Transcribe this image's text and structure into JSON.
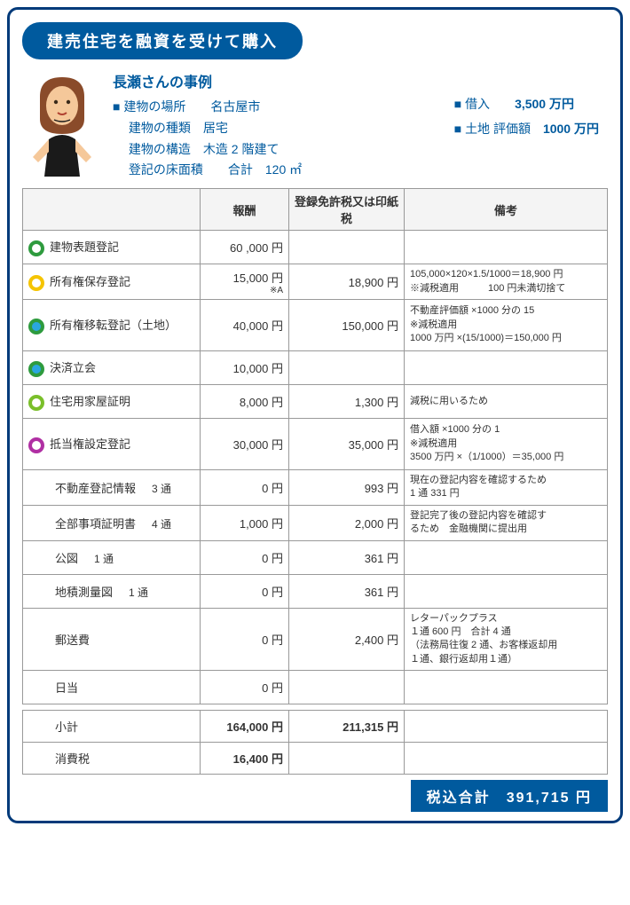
{
  "title": "建売住宅を融資を受けて購入",
  "case_name": "長瀬さんの事例",
  "details": {
    "location_label": "建物の場所",
    "location": "名古屋市",
    "type_label": "建物の種類",
    "type": "居宅",
    "structure_label": "建物の構造",
    "structure": "木造 2 階建て",
    "area_label": "登記の床面積",
    "area": "合計　120 ㎡"
  },
  "right": {
    "loan_label": "借入",
    "loan": "3,500 万円",
    "land_label": "土地 評価額",
    "land": "1000 万円"
  },
  "headers": {
    "fee": "報酬",
    "tax": "登録免許税又は印紙税",
    "note": "備考"
  },
  "rows": [
    {
      "bullet_border": "#2e9b3e",
      "bullet_fill": "#ffffff",
      "name": "建物表題登記",
      "fee": "60 ,000 円",
      "tax": "",
      "note": "",
      "h": "row-h"
    },
    {
      "bullet_border": "#f5c400",
      "bullet_fill": "#ffffff",
      "name": "所有権保存登記",
      "fee": "15,000 円",
      "fee_sub": "※A",
      "tax": "18,900 円",
      "note": "105,000×120×1.5/1000＝18,900 円\n※減税適用　　　100 円未満切捨て",
      "h": "row-h"
    },
    {
      "bullet_border": "#2e9b3e",
      "bullet_fill": "#2aa7e0",
      "name": "所有権移転登記（土地）",
      "fee": "40,000 円",
      "tax": "150,000 円",
      "note": "不動産評価額 ×1000 分の 15\n※減税適用\n1000 万円 ×(15/1000)＝150,000 円",
      "h": "row-tall"
    },
    {
      "bullet_border": "#2e9b3e",
      "bullet_fill": "#2aa7e0",
      "name": "決済立会",
      "fee": "10,000 円",
      "tax": "",
      "note": "",
      "h": "row-h"
    },
    {
      "bullet_border": "#7abf2a",
      "bullet_fill": "#ffffff",
      "name": "住宅用家屋証明",
      "fee": "8,000 円",
      "tax": "1,300 円",
      "note": "減税に用いるため",
      "h": "row-h"
    },
    {
      "bullet_border": "#b02fa3",
      "bullet_fill": "#ffffff",
      "name": "抵当権設定登記",
      "fee": "30,000 円",
      "tax": "35,000 円",
      "note": "借入額 ×1000 分の 1\n※減税適用\n3500 万円 ×（1/1000）＝35,000 円",
      "h": "row-tall"
    },
    {
      "indent": true,
      "name": "不動産登記情報",
      "copies": "3 通",
      "fee": "0 円",
      "tax": "993 円",
      "note": "現在の登記内容を確認するため\n1 通 331 円",
      "h": "row-h"
    },
    {
      "indent": true,
      "name": "全部事項証明書",
      "copies": "4 通",
      "fee": "1,000 円",
      "tax": "2,000 円",
      "note": "登記完了後の登記内容を確認す\nるため　金融機関に提出用",
      "h": "row-h"
    },
    {
      "indent": true,
      "name": "公図",
      "copies": "1 通",
      "fee": "0 円",
      "tax": "361 円",
      "note": "",
      "h": "row-h"
    },
    {
      "indent": true,
      "name": "地積測量図",
      "copies": "1 通",
      "fee": "0 円",
      "tax": "361 円",
      "note": "",
      "h": "row-h"
    },
    {
      "indent": true,
      "name": "郵送費",
      "fee": "0 円",
      "tax": "2,400 円",
      "note": "レターパックプラス\n１通 600 円　合計 4 通\n（法務局往復 2 通、お客様返却用\n１通、銀行返却用１通）",
      "h": "row-tall"
    },
    {
      "indent": true,
      "name": "日当",
      "fee": "0 円",
      "tax": "",
      "note": "",
      "h": "row-h"
    }
  ],
  "totals": {
    "subtotal_label": "小計",
    "subtotal_fee": "164,000 円",
    "subtotal_tax": "211,315 円",
    "vat_label": "消費税",
    "vat_fee": "16,400 円"
  },
  "grand_label": "税込合計",
  "grand_value": "391,715 円"
}
